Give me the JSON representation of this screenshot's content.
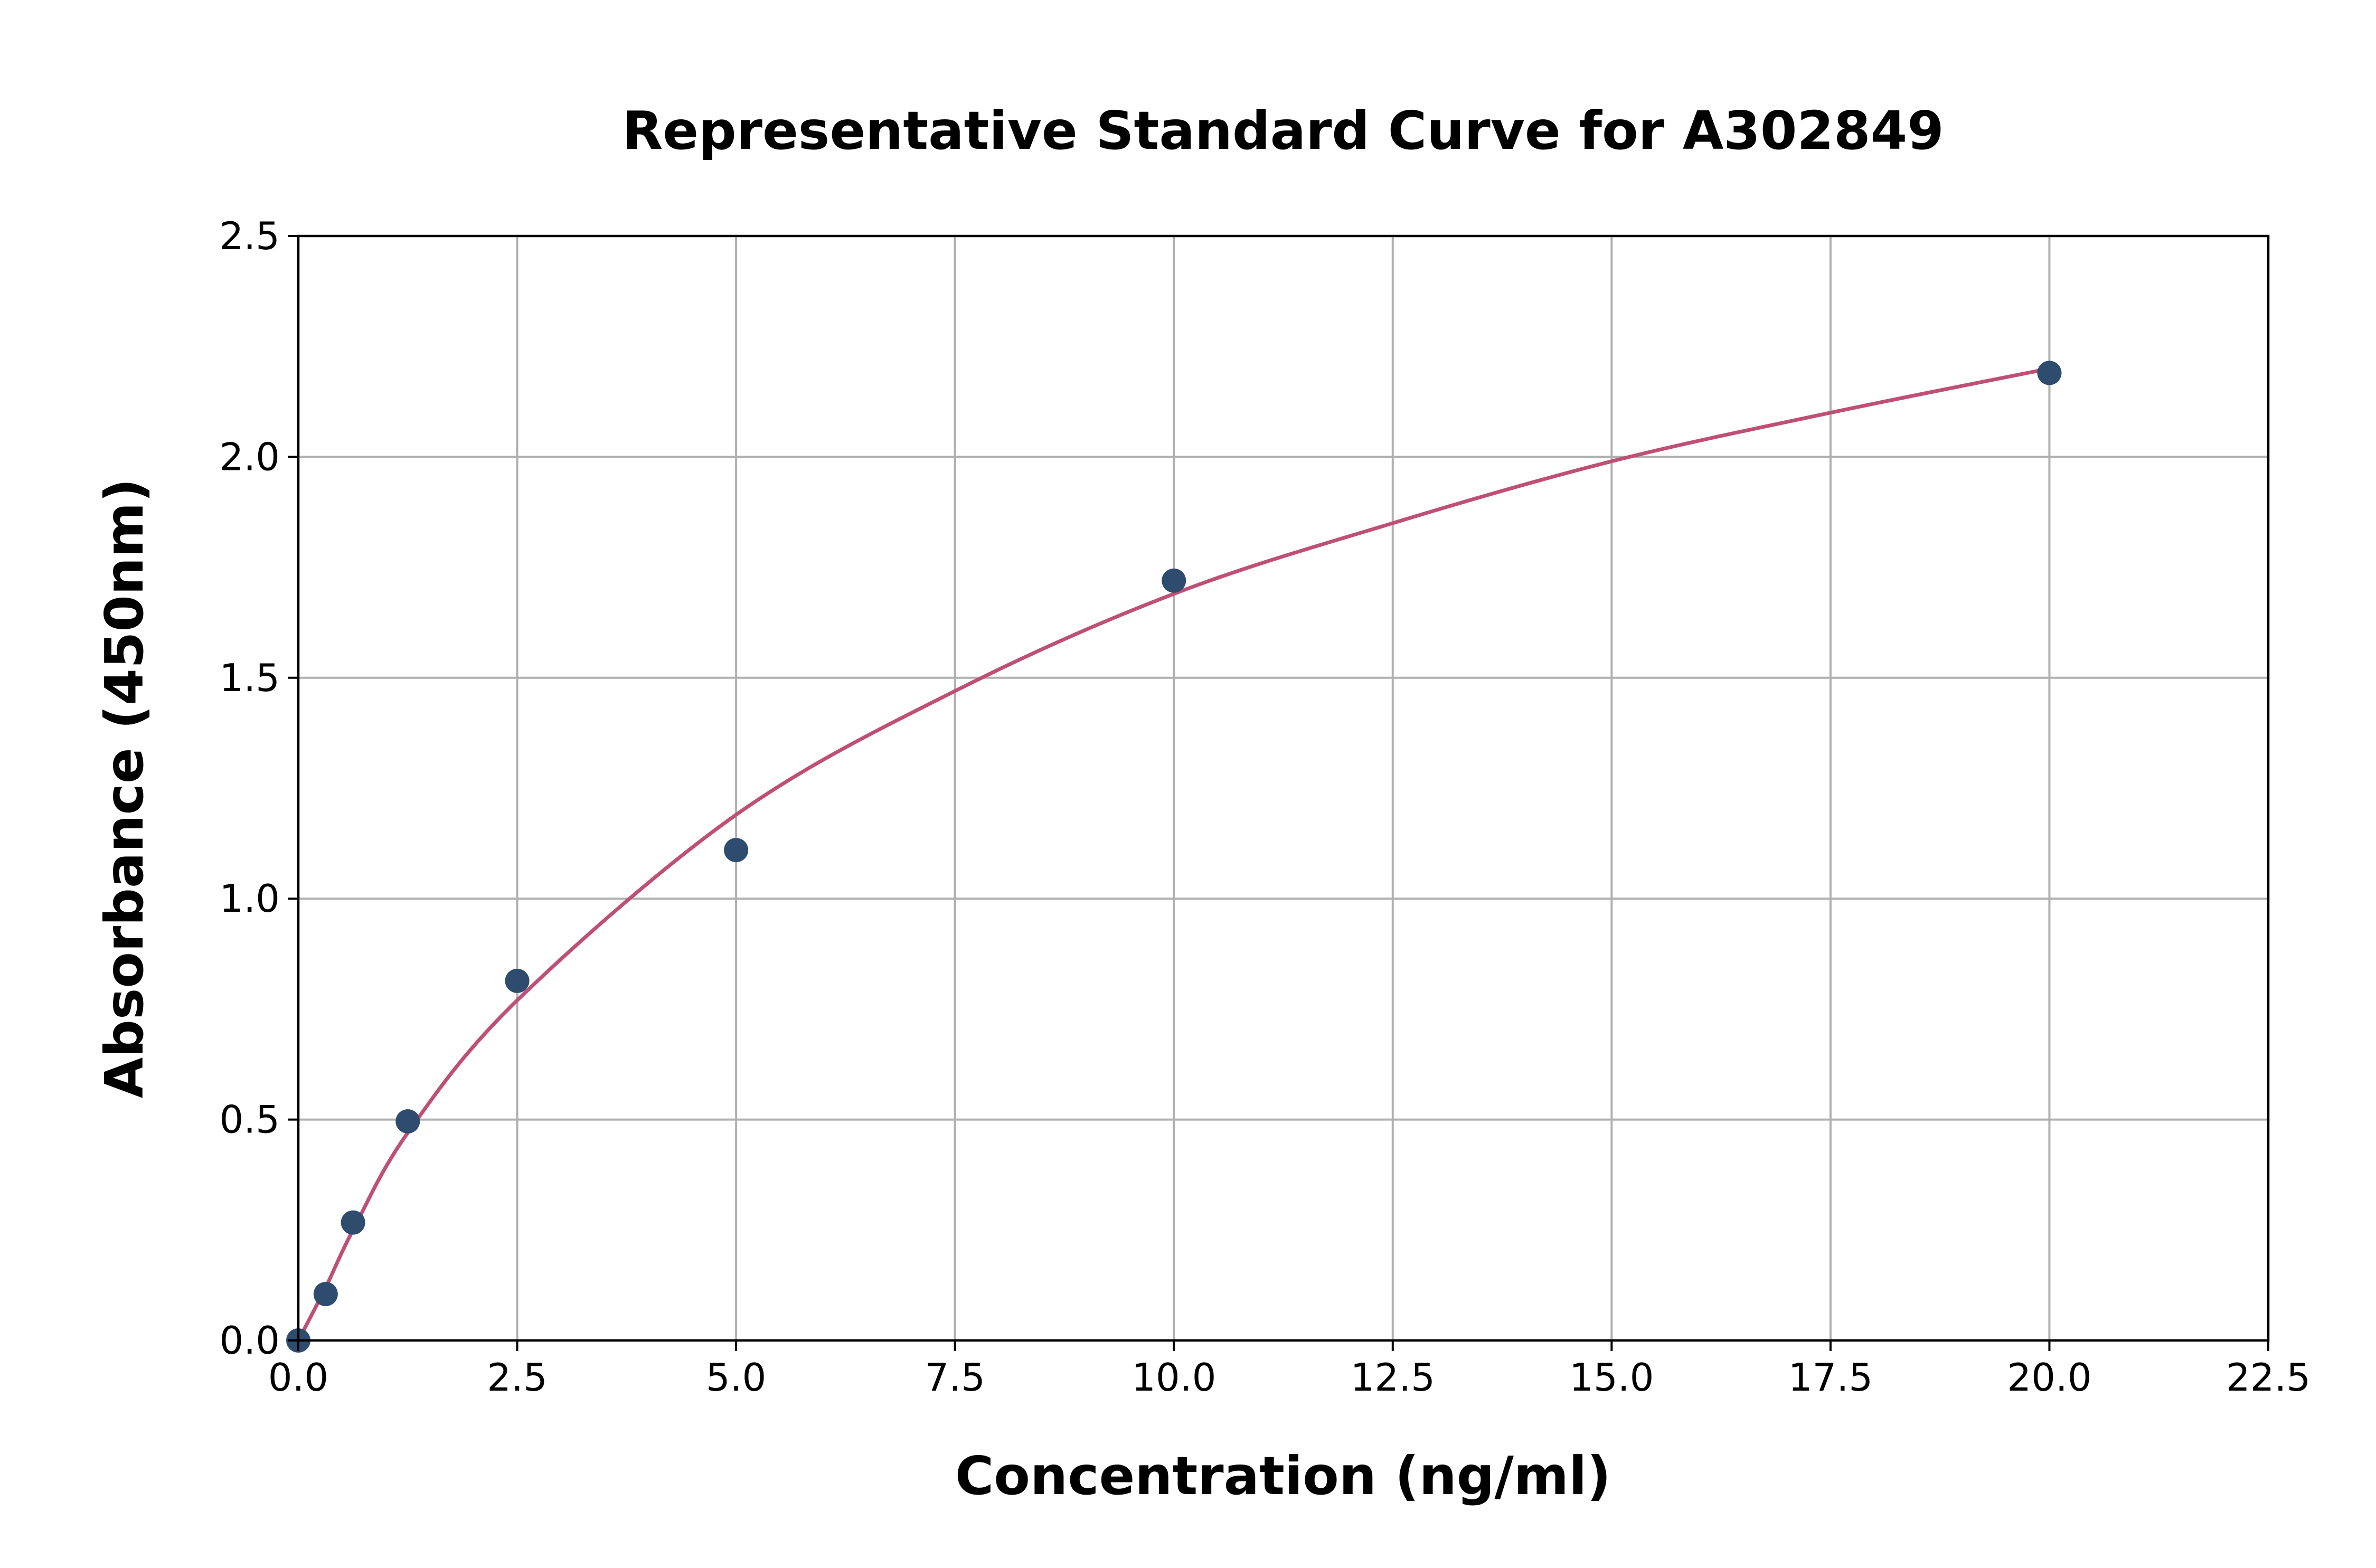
{
  "chart_data": {
    "type": "scatter",
    "title": "Representative Standard Curve for A302849",
    "xlabel": "Concentration (ng/ml)",
    "ylabel": "Absorbance (450nm)",
    "xlim": [
      0,
      22.5
    ],
    "ylim": [
      0,
      2.5
    ],
    "xticks": [
      "0.0",
      "2.5",
      "5.0",
      "7.5",
      "10.0",
      "12.5",
      "15.0",
      "17.5",
      "20.0",
      "22.5"
    ],
    "yticks": [
      "0.0",
      "0.5",
      "1.0",
      "1.5",
      "2.0",
      "2.5"
    ],
    "grid": true,
    "points": {
      "x": [
        0,
        0.3125,
        0.625,
        1.25,
        2.5,
        5,
        10,
        20
      ],
      "y": [
        0.0,
        0.105,
        0.267,
        0.496,
        0.814,
        1.11,
        1.72,
        2.19
      ],
      "color": "#2e4d6e"
    },
    "fit_curve": {
      "x": [
        0,
        0.3125,
        0.625,
        1.25,
        2.5,
        5,
        7.5,
        10,
        12.5,
        15,
        17.5,
        20
      ],
      "y": [
        0,
        0.12,
        0.25,
        0.47,
        0.77,
        1.19,
        1.47,
        1.69,
        1.85,
        1.99,
        2.1,
        2.2
      ],
      "color": "#c04f75"
    }
  }
}
